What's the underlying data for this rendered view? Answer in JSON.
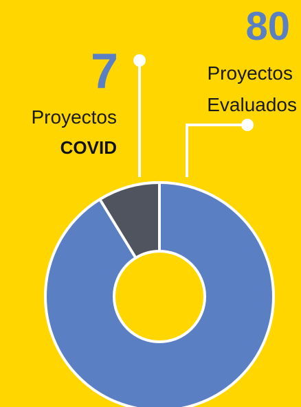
{
  "chart_data": {
    "type": "donut",
    "categories": [
      [
        "Proyectos",
        "Evaluados"
      ],
      [
        "Proyectos",
        "COVID"
      ]
    ],
    "values": [
      80,
      7
    ],
    "colors": [
      "#5B7FC3",
      "#4F545E"
    ]
  }
}
